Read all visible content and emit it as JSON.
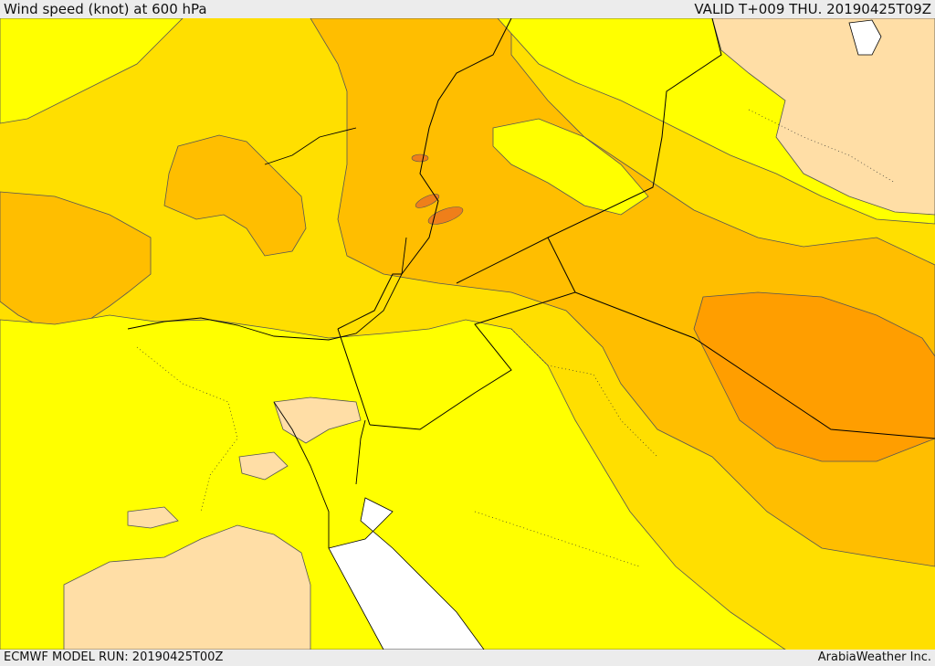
{
  "header": {
    "title": "Wind speed (knot) at 600 hPa",
    "valid": "VALID T+009 THU. 20190425T09Z"
  },
  "footer": {
    "model_run": "ECMWF MODEL RUN: 20190425T00Z",
    "credit": "ArabiaWeather Inc."
  },
  "map": {
    "variable": "Wind speed",
    "unit": "knot",
    "level": "600 hPa",
    "colors": {
      "band_0": "#ffdea6",
      "band_1": "#ffff00",
      "band_2": "#ffdf00",
      "band_3": "#ffbe00",
      "band_4": "#ff9e00",
      "band_5": "#ef7f1a",
      "sea_no_data": "#ffffff",
      "borders": "#000000"
    }
  }
}
